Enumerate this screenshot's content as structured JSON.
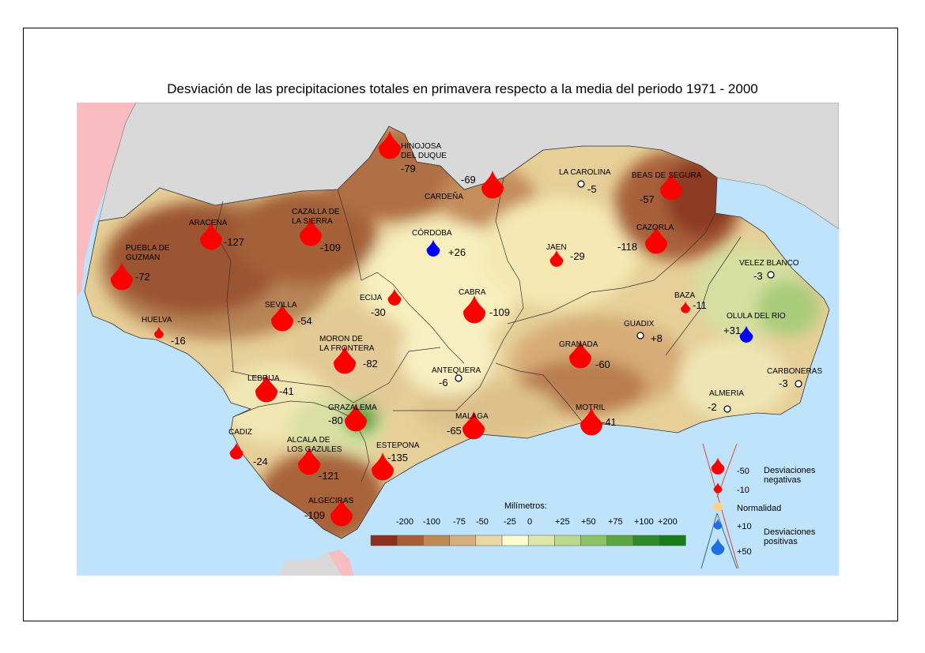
{
  "title": "Desviación de las precipitaciones totales en primavera respecto a la media del periodo 1971 - 2000",
  "colors": {
    "sea": "#bfe3fb",
    "land_outside": "#d9d9d9",
    "portugal": "#f9bcc0",
    "drop_negative": "#ff0000",
    "drop_positive": "#0000ff",
    "normal": "#ffd28c"
  },
  "stations": [
    {
      "id": "hinojosa",
      "name1": "HINOJOSA",
      "name2": "DEL DUQUE",
      "value": "-79",
      "kind": "neg",
      "size": "big"
    },
    {
      "id": "cardena",
      "name1": "CARDEÑA",
      "name2": "",
      "value": "-69",
      "kind": "neg",
      "size": "big"
    },
    {
      "id": "la-carolina",
      "name1": "LA CAROLINA",
      "name2": "",
      "value": "-5",
      "kind": "normal",
      "size": "ring"
    },
    {
      "id": "beas",
      "name1": "BEAS DE SEGURA",
      "name2": "",
      "value": "-57",
      "kind": "neg",
      "size": "big"
    },
    {
      "id": "aracena",
      "name1": "ARACENA",
      "name2": "",
      "value": "-127",
      "kind": "neg",
      "size": "big"
    },
    {
      "id": "cazalla",
      "name1": "CAZALLA DE",
      "name2": "LA SIERRA",
      "value": "-109",
      "kind": "neg",
      "size": "big"
    },
    {
      "id": "cordoba",
      "name1": "CÓRDOBA",
      "name2": "",
      "value": "+26",
      "kind": "pos",
      "size": "small"
    },
    {
      "id": "jaen",
      "name1": "JAEN",
      "name2": "",
      "value": "-29",
      "kind": "neg",
      "size": "small"
    },
    {
      "id": "cazorla",
      "name1": "CAZORLA",
      "name2": "",
      "value": "-118",
      "kind": "neg",
      "size": "big"
    },
    {
      "id": "puebla",
      "name1": "PUEBLA DE",
      "name2": "GUZMAN",
      "value": "-72",
      "kind": "neg",
      "size": "big"
    },
    {
      "id": "velez",
      "name1": "VELEZ BLANCO",
      "name2": "",
      "value": "-3",
      "kind": "normal",
      "size": "ring"
    },
    {
      "id": "ecija",
      "name1": "ECIJA",
      "name2": "",
      "value": "-30",
      "kind": "neg",
      "size": "small"
    },
    {
      "id": "cabra",
      "name1": "CABRA",
      "name2": "",
      "value": "-109",
      "kind": "neg",
      "size": "big"
    },
    {
      "id": "baza",
      "name1": "BAZA",
      "name2": "",
      "value": "-11",
      "kind": "neg",
      "size": "tiny"
    },
    {
      "id": "sevilla",
      "name1": "SEVILLA",
      "name2": "",
      "value": "-54",
      "kind": "neg",
      "size": "big"
    },
    {
      "id": "olula",
      "name1": "OLULA DEL RIO",
      "name2": "",
      "value": "+31",
      "kind": "pos",
      "size": "small"
    },
    {
      "id": "huelva",
      "name1": "HUELVA",
      "name2": "",
      "value": "-16",
      "kind": "neg",
      "size": "tiny"
    },
    {
      "id": "guadix",
      "name1": "GUADIX",
      "name2": "",
      "value": "+8",
      "kind": "normal",
      "size": "ring"
    },
    {
      "id": "moron",
      "name1": "MORON DE",
      "name2": "LA FRONTERA",
      "value": "-82",
      "kind": "neg",
      "size": "big"
    },
    {
      "id": "granada",
      "name1": "GRANADA",
      "name2": "",
      "value": "-60",
      "kind": "neg",
      "size": "big"
    },
    {
      "id": "antequera",
      "name1": "ANTEQUERA",
      "name2": "",
      "value": "-6",
      "kind": "normal",
      "size": "ring"
    },
    {
      "id": "carboneras",
      "name1": "CARBONERAS",
      "name2": "",
      "value": "-3",
      "kind": "normal",
      "size": "ring"
    },
    {
      "id": "lebrija",
      "name1": "LEBRIJA",
      "name2": "",
      "value": "-41",
      "kind": "neg",
      "size": "big"
    },
    {
      "id": "almeria",
      "name1": "ALMERIA",
      "name2": "",
      "value": "-2",
      "kind": "normal",
      "size": "ring"
    },
    {
      "id": "grazalema",
      "name1": "GRAZALEMA",
      "name2": "",
      "value": "-80",
      "kind": "neg",
      "size": "big"
    },
    {
      "id": "motril",
      "name1": "MOTRIL",
      "name2": "",
      "value": "-41",
      "kind": "neg",
      "size": "big"
    },
    {
      "id": "malaga",
      "name1": "MALAGA",
      "name2": "",
      "value": "-65",
      "kind": "neg",
      "size": "big"
    },
    {
      "id": "cadiz",
      "name1": "CADIZ",
      "name2": "",
      "value": "-24",
      "kind": "neg",
      "size": "small"
    },
    {
      "id": "alcala",
      "name1": "ALCALA DE",
      "name2": "LOS GAZULES",
      "value": "-121",
      "kind": "neg",
      "size": "big"
    },
    {
      "id": "estepona",
      "name1": "ESTEPONA",
      "name2": "",
      "value": "-135",
      "kind": "neg",
      "size": "big"
    },
    {
      "id": "algeciras",
      "name1": "ALGECIRAS",
      "name2": "",
      "value": "-109",
      "kind": "neg",
      "size": "big"
    }
  ],
  "scale": {
    "title": "Milímetros:",
    "labels": [
      "-200",
      "-100",
      "-75",
      "-50",
      "-25",
      "0",
      "+25",
      "+50",
      "+75",
      "+100",
      "+200"
    ],
    "colors": [
      "#8c2f1c",
      "#a95d33",
      "#c38955",
      "#d8ad7c",
      "#ead7a4",
      "#fdfbd0",
      "#dfe7a8",
      "#bad98b",
      "#8cc268",
      "#59a53f",
      "#2e8c26",
      "#167d15"
    ]
  },
  "legend": {
    "items": [
      "-50",
      "-10",
      "Normalidad",
      "+10",
      "+50"
    ],
    "neg_label_1": "Desviaciones",
    "neg_label_2": "negativas",
    "pos_label_1": "Desviaciones",
    "pos_label_2": "positivas"
  }
}
